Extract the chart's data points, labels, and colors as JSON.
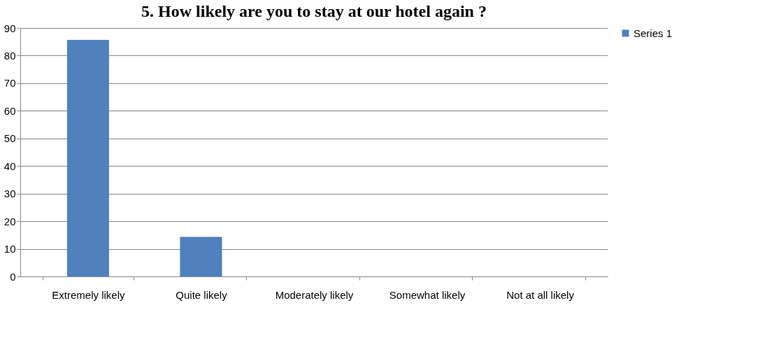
{
  "chart_data": {
    "type": "bar",
    "title": "5. How likely are you to stay at our hotel again ?",
    "categories": [
      "Extremely likely",
      "Quite likely",
      "Moderately likely",
      "Somewhat likely",
      "Not at all likely"
    ],
    "series": [
      {
        "name": "Series 1",
        "color": "#4f81bd",
        "values": [
          85.7,
          14.3,
          0,
          0,
          0
        ]
      }
    ],
    "ylim": [
      0,
      90
    ],
    "yticks": [
      0,
      10,
      20,
      30,
      40,
      50,
      60,
      70,
      80,
      90
    ],
    "grid": "y",
    "legend": "right"
  }
}
